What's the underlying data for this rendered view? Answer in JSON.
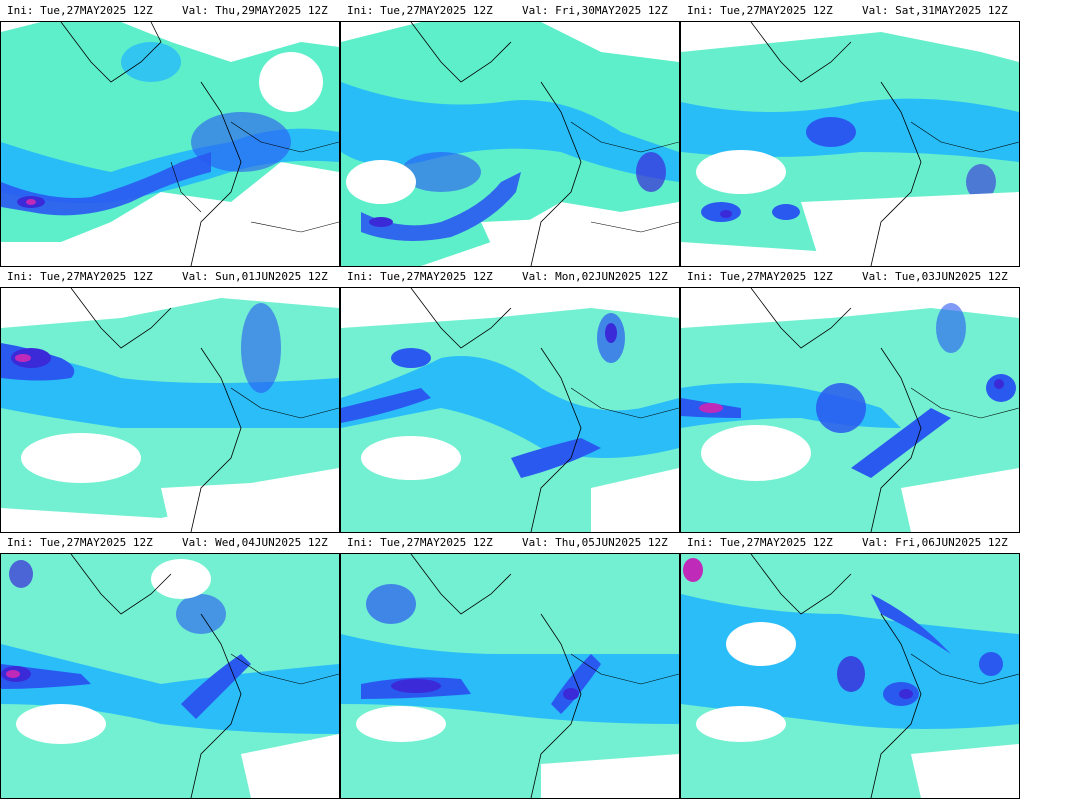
{
  "colors": {
    "background": "#ffffff",
    "light": "#27e8b8",
    "medium": "#1fb4ff",
    "strong": "#2a59f0",
    "heavy": "#3a2ad8",
    "extreme": "#c02ab8",
    "coastline": "#000000"
  },
  "panels": [
    {
      "ini_label": "Ini:",
      "ini_value": "Tue,27MAY2025 12Z",
      "val_label": "Val:",
      "val_value": "Thu,29MAY2025 12Z"
    },
    {
      "ini_label": "Ini:",
      "ini_value": "Tue,27MAY2025 12Z",
      "val_label": "Val:",
      "val_value": "Fri,30MAY2025 12Z"
    },
    {
      "ini_label": "Ini:",
      "ini_value": "Tue,27MAY2025 12Z",
      "val_label": "Val:",
      "val_value": "Sat,31MAY2025 12Z"
    },
    {
      "ini_label": "Ini:",
      "ini_value": "Tue,27MAY2025 12Z",
      "val_label": "Val:",
      "val_value": "Sun,01JUN2025 12Z"
    },
    {
      "ini_label": "Ini:",
      "ini_value": "Tue,27MAY2025 12Z",
      "val_label": "Val:",
      "val_value": "Mon,02JUN2025 12Z"
    },
    {
      "ini_label": "Ini:",
      "ini_value": "Tue,27MAY2025 12Z",
      "val_label": "Val:",
      "val_value": "Tue,03JUN2025 12Z"
    },
    {
      "ini_label": "Ini:",
      "ini_value": "Tue,27MAY2025 12Z",
      "val_label": "Val:",
      "val_value": "Wed,04JUN2025 12Z"
    },
    {
      "ini_label": "Ini:",
      "ini_value": "Tue,27MAY2025 12Z",
      "val_label": "Val:",
      "val_value": "Thu,05JUN2025 12Z"
    },
    {
      "ini_label": "Ini:",
      "ini_value": "Tue,27MAY2025 12Z",
      "val_label": "Val:",
      "val_value": "Fri,06JUN2025 12Z"
    }
  ]
}
